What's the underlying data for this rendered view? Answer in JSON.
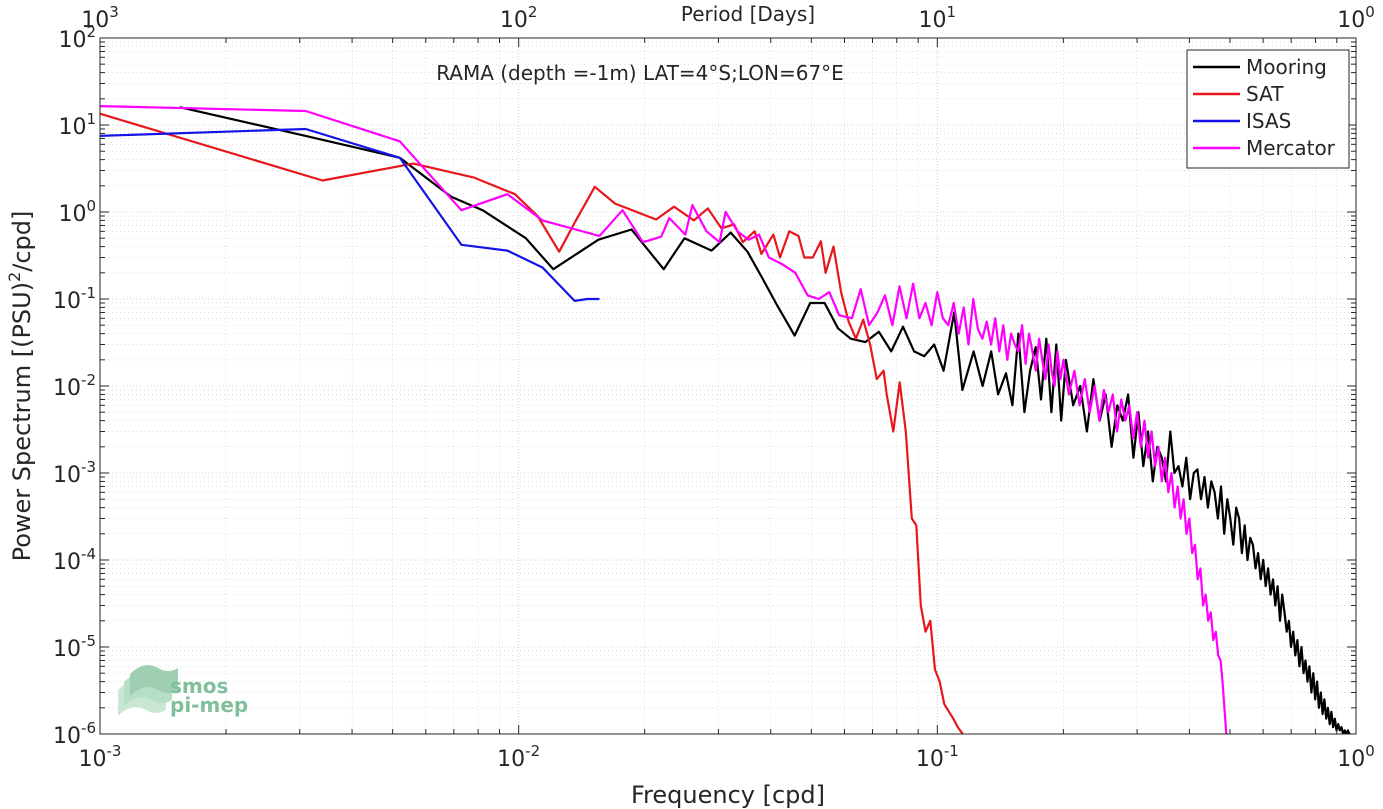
{
  "chart_data": {
    "type": "line",
    "title": "RAMA (depth =-1m) LAT=4°S;LON=67°E",
    "xlabel": "Frequency [cpd]",
    "ylabel": "Power Spectrum [(PSU)²/cpd]",
    "ylabel_parts": {
      "base": "Power Spectrum [(PSU)",
      "sup": "2",
      "rest": "/cpd]"
    },
    "top_xlabel": "Period [Days]",
    "x_scale": "log",
    "y_scale": "log",
    "xlim": [
      0.001,
      1
    ],
    "ylim": [
      1e-06,
      100
    ],
    "grid": true,
    "legend_position": "top-right",
    "x_ticks": [
      {
        "value": 0.001,
        "base": "10",
        "exp": "-3"
      },
      {
        "value": 0.01,
        "base": "10",
        "exp": "-2"
      },
      {
        "value": 0.1,
        "base": "10",
        "exp": "-1"
      },
      {
        "value": 1,
        "base": "10",
        "exp": "0"
      }
    ],
    "top_ticks": [
      {
        "value": 0.001,
        "base": "10",
        "exp": "3"
      },
      {
        "value": 0.01,
        "base": "10",
        "exp": "2"
      },
      {
        "value": 0.1,
        "base": "10",
        "exp": "1"
      },
      {
        "value": 1,
        "base": "10",
        "exp": "0"
      }
    ],
    "y_ticks": [
      {
        "value": 100,
        "base": "10",
        "exp": "2"
      },
      {
        "value": 10,
        "base": "10",
        "exp": "1"
      },
      {
        "value": 1,
        "base": "10",
        "exp": "0"
      },
      {
        "value": 0.1,
        "base": "10",
        "exp": "-1"
      },
      {
        "value": 0.01,
        "base": "10",
        "exp": "-2"
      },
      {
        "value": 0.001,
        "base": "10",
        "exp": "-3"
      },
      {
        "value": 0.0001,
        "base": "10",
        "exp": "-4"
      },
      {
        "value": 1e-05,
        "base": "10",
        "exp": "-5"
      },
      {
        "value": 1e-06,
        "base": "10",
        "exp": "-6"
      }
    ],
    "series": [
      {
        "name": "Mooring",
        "color": "#000000",
        "x": [
          0.00155,
          0.0031,
          0.0052,
          0.0069,
          0.0082,
          0.0104,
          0.0121,
          0.0155,
          0.0186,
          0.0222,
          0.0249,
          0.0289,
          0.0321,
          0.0352,
          0.0383,
          0.0414,
          0.0456,
          0.0497,
          0.0538,
          0.0579,
          0.0621,
          0.0673,
          0.0725,
          0.0776,
          0.0828,
          0.088,
          0.0931,
          0.0983,
          0.1035,
          0.1097,
          0.1148,
          0.1221,
          0.1283,
          0.1345,
          0.1397,
          0.1459,
          0.1511,
          0.1562,
          0.1614,
          0.1666,
          0.1718,
          0.1769,
          0.1821,
          0.1873,
          0.1924,
          0.1976,
          0.2028,
          0.2111,
          0.2194,
          0.2276,
          0.2359,
          0.2442,
          0.2525,
          0.2608,
          0.269,
          0.2773,
          0.2856,
          0.2939,
          0.3022,
          0.3104,
          0.3187,
          0.327,
          0.3353,
          0.3436,
          0.3518,
          0.3601,
          0.3684,
          0.3767,
          0.385,
          0.3932,
          0.4015,
          0.4098,
          0.4181,
          0.4264,
          0.4346,
          0.4429,
          0.4512,
          0.4595,
          0.4678,
          0.476,
          0.4843,
          0.4926,
          0.5009,
          0.5092,
          0.5174,
          0.5257,
          0.534,
          0.5423,
          0.5506,
          0.5588,
          0.5671,
          0.5754,
          0.5837,
          0.592,
          0.6002,
          0.6085,
          0.6168,
          0.6251,
          0.6334,
          0.6416,
          0.6499,
          0.6582,
          0.6665,
          0.6748,
          0.683,
          0.6913,
          0.6996,
          0.7079,
          0.7162,
          0.7244,
          0.7327,
          0.741,
          0.7493,
          0.7576,
          0.7658,
          0.7741,
          0.7824,
          0.7907,
          0.799,
          0.8072,
          0.8155,
          0.8238,
          0.8321,
          0.8404,
          0.8486,
          0.8569,
          0.8652,
          0.8735,
          0.8818,
          0.89,
          0.8983,
          0.9066,
          0.9149,
          0.9232,
          0.9314,
          0.9397,
          0.948,
          0.9563,
          0.9646,
          0.97
        ],
        "y": [
          16.0,
          7.5,
          4.2,
          1.5,
          1.05,
          0.5,
          0.22,
          0.48,
          0.63,
          0.22,
          0.5,
          0.36,
          0.58,
          0.35,
          0.17,
          0.085,
          0.038,
          0.09,
          0.09,
          0.046,
          0.035,
          0.032,
          0.042,
          0.025,
          0.048,
          0.025,
          0.022,
          0.03,
          0.015,
          0.07,
          0.009,
          0.025,
          0.01,
          0.025,
          0.008,
          0.014,
          0.006,
          0.04,
          0.005,
          0.015,
          0.028,
          0.007,
          0.035,
          0.005,
          0.03,
          0.004,
          0.02,
          0.006,
          0.01,
          0.003,
          0.012,
          0.004,
          0.008,
          0.002,
          0.006,
          0.004,
          0.008,
          0.0015,
          0.005,
          0.0012,
          0.003,
          0.0008,
          0.002,
          0.0015,
          0.0008,
          0.003,
          0.001,
          0.0012,
          0.0007,
          0.0015,
          0.0005,
          0.001,
          0.0011,
          0.0005,
          0.0009,
          0.0004,
          0.0008,
          0.0006,
          0.0003,
          0.0007,
          0.0002,
          0.0005,
          0.0003,
          0.00015,
          0.0004,
          0.0003,
          0.00012,
          0.00025,
          0.0001,
          0.00018,
          0.00015,
          8e-05,
          0.00012,
          6e-05,
          0.0001,
          5e-05,
          8e-05,
          4e-05,
          6e-05,
          3e-05,
          5e-05,
          2e-05,
          4e-05,
          2.5e-05,
          1.5e-05,
          2e-05,
          1e-05,
          1.5e-05,
          8e-06,
          1.2e-05,
          6e-06,
          1e-05,
          5e-06,
          7e-06,
          4e-06,
          6e-06,
          3e-06,
          5e-06,
          2.5e-06,
          4e-06,
          2e-06,
          3e-06,
          1.7e-06,
          2.5e-06,
          1.5e-06,
          2e-06,
          1.3e-06,
          1.8e-06,
          1.2e-06,
          1.5e-06,
          1.1e-06,
          1.3e-06,
          1.1e-06,
          1.2e-06,
          1e-06,
          1.1e-06,
          1e-06,
          1.1e-06,
          1e-06,
          1e-06
        ]
      },
      {
        "name": "SAT",
        "color": "#e8171c",
        "x": [
          0.001,
          0.0034,
          0.0056,
          0.0078,
          0.0098,
          0.0111,
          0.0125,
          0.0137,
          0.0152,
          0.017,
          0.0213,
          0.0235,
          0.0262,
          0.0283,
          0.0305,
          0.0327,
          0.0343,
          0.0366,
          0.038,
          0.0406,
          0.0421,
          0.0443,
          0.0466,
          0.0481,
          0.0504,
          0.0527,
          0.0541,
          0.0565,
          0.0589,
          0.0614,
          0.0639,
          0.0665,
          0.0691,
          0.0717,
          0.0744,
          0.0757,
          0.0785,
          0.0813,
          0.0841,
          0.0869,
          0.0891,
          0.0913,
          0.0937,
          0.0962,
          0.0987,
          0.1013,
          0.1039,
          0.1066,
          0.1092,
          0.1119,
          0.115
        ],
        "y": [
          13.5,
          2.3,
          3.6,
          2.5,
          1.6,
          0.9,
          0.35,
          0.8,
          1.95,
          1.25,
          0.82,
          1.15,
          0.8,
          1.1,
          0.65,
          0.72,
          0.45,
          0.6,
          0.33,
          0.55,
          0.3,
          0.6,
          0.53,
          0.3,
          0.3,
          0.46,
          0.2,
          0.4,
          0.12,
          0.055,
          0.035,
          0.058,
          0.03,
          0.012,
          0.015,
          0.008,
          0.003,
          0.011,
          0.003,
          0.0003,
          0.00025,
          3e-05,
          1.5e-05,
          2e-05,
          5.5e-06,
          4e-06,
          2.2e-06,
          1.8e-06,
          1.5e-06,
          1.2e-06,
          1e-06
        ]
      },
      {
        "name": "ISAS",
        "color": "#1414e8",
        "x": [
          0.001,
          0.0031,
          0.0052,
          0.0073,
          0.0094,
          0.0114,
          0.0136,
          0.0146,
          0.0156
        ],
        "y": [
          7.5,
          9.0,
          4.2,
          0.42,
          0.36,
          0.23,
          0.095,
          0.1,
          0.1
        ]
      },
      {
        "name": "Mercator",
        "color": "#ff00ff",
        "x": [
          0.001,
          0.0031,
          0.0052,
          0.0073,
          0.0094,
          0.0114,
          0.0156,
          0.0177,
          0.0198,
          0.0219,
          0.0229,
          0.025,
          0.026,
          0.0281,
          0.0302,
          0.0312,
          0.0333,
          0.0354,
          0.0375,
          0.0396,
          0.0427,
          0.0458,
          0.049,
          0.0521,
          0.0552,
          0.0583,
          0.0625,
          0.0656,
          0.0687,
          0.0719,
          0.075,
          0.0781,
          0.0812,
          0.0844,
          0.0875,
          0.0906,
          0.0937,
          0.0969,
          0.1,
          0.1031,
          0.1062,
          0.1094,
          0.1125,
          0.1156,
          0.1187,
          0.1219,
          0.125,
          0.1281,
          0.1312,
          0.1344,
          0.1375,
          0.1406,
          0.1437,
          0.1469,
          0.15,
          0.1531,
          0.1562,
          0.1594,
          0.1625,
          0.1656,
          0.1687,
          0.1719,
          0.175,
          0.1781,
          0.1812,
          0.1844,
          0.1875,
          0.1906,
          0.1937,
          0.1969,
          0.2,
          0.2062,
          0.2125,
          0.2187,
          0.225,
          0.2312,
          0.2375,
          0.2437,
          0.25,
          0.2562,
          0.2625,
          0.2687,
          0.275,
          0.2812,
          0.2875,
          0.2937,
          0.3,
          0.3062,
          0.3125,
          0.3187,
          0.325,
          0.3312,
          0.3375,
          0.3437,
          0.35,
          0.3562,
          0.3625,
          0.3687,
          0.375,
          0.3812,
          0.3875,
          0.3937,
          0.4,
          0.4062,
          0.4125,
          0.4187,
          0.425,
          0.4312,
          0.4375,
          0.4437,
          0.45,
          0.4562,
          0.4625,
          0.4687,
          0.475,
          0.48,
          0.485,
          0.49
        ],
        "y": [
          16.5,
          14.5,
          6.5,
          1.05,
          1.6,
          0.8,
          0.53,
          1.05,
          0.45,
          0.52,
          0.85,
          0.55,
          1.2,
          0.6,
          0.45,
          1.0,
          0.6,
          0.48,
          0.55,
          0.3,
          0.25,
          0.2,
          0.11,
          0.1,
          0.12,
          0.065,
          0.06,
          0.13,
          0.05,
          0.07,
          0.11,
          0.05,
          0.14,
          0.06,
          0.15,
          0.06,
          0.09,
          0.05,
          0.12,
          0.06,
          0.05,
          0.09,
          0.04,
          0.08,
          0.03,
          0.1,
          0.045,
          0.035,
          0.055,
          0.03,
          0.06,
          0.025,
          0.05,
          0.02,
          0.04,
          0.03,
          0.025,
          0.05,
          0.018,
          0.04,
          0.025,
          0.015,
          0.035,
          0.02,
          0.012,
          0.03,
          0.015,
          0.01,
          0.025,
          0.012,
          0.02,
          0.008,
          0.015,
          0.006,
          0.012,
          0.005,
          0.01,
          0.004,
          0.009,
          0.005,
          0.008,
          0.003,
          0.007,
          0.004,
          0.006,
          0.0025,
          0.005,
          0.002,
          0.004,
          0.0015,
          0.003,
          0.0012,
          0.002,
          0.0008,
          0.0015,
          0.0006,
          0.001,
          0.0004,
          0.0007,
          0.0003,
          0.0005,
          0.0002,
          0.0003,
          0.00012,
          0.00015,
          6e-05,
          8e-05,
          3e-05,
          4e-05,
          2e-05,
          2.5e-05,
          1.2e-05,
          1.5e-05,
          8e-06,
          7e-06,
          4e-06,
          2e-06,
          1e-06
        ]
      }
    ]
  },
  "logo": {
    "line1": "smos",
    "line2": "pi-mep",
    "color": "#7fbf9a"
  }
}
